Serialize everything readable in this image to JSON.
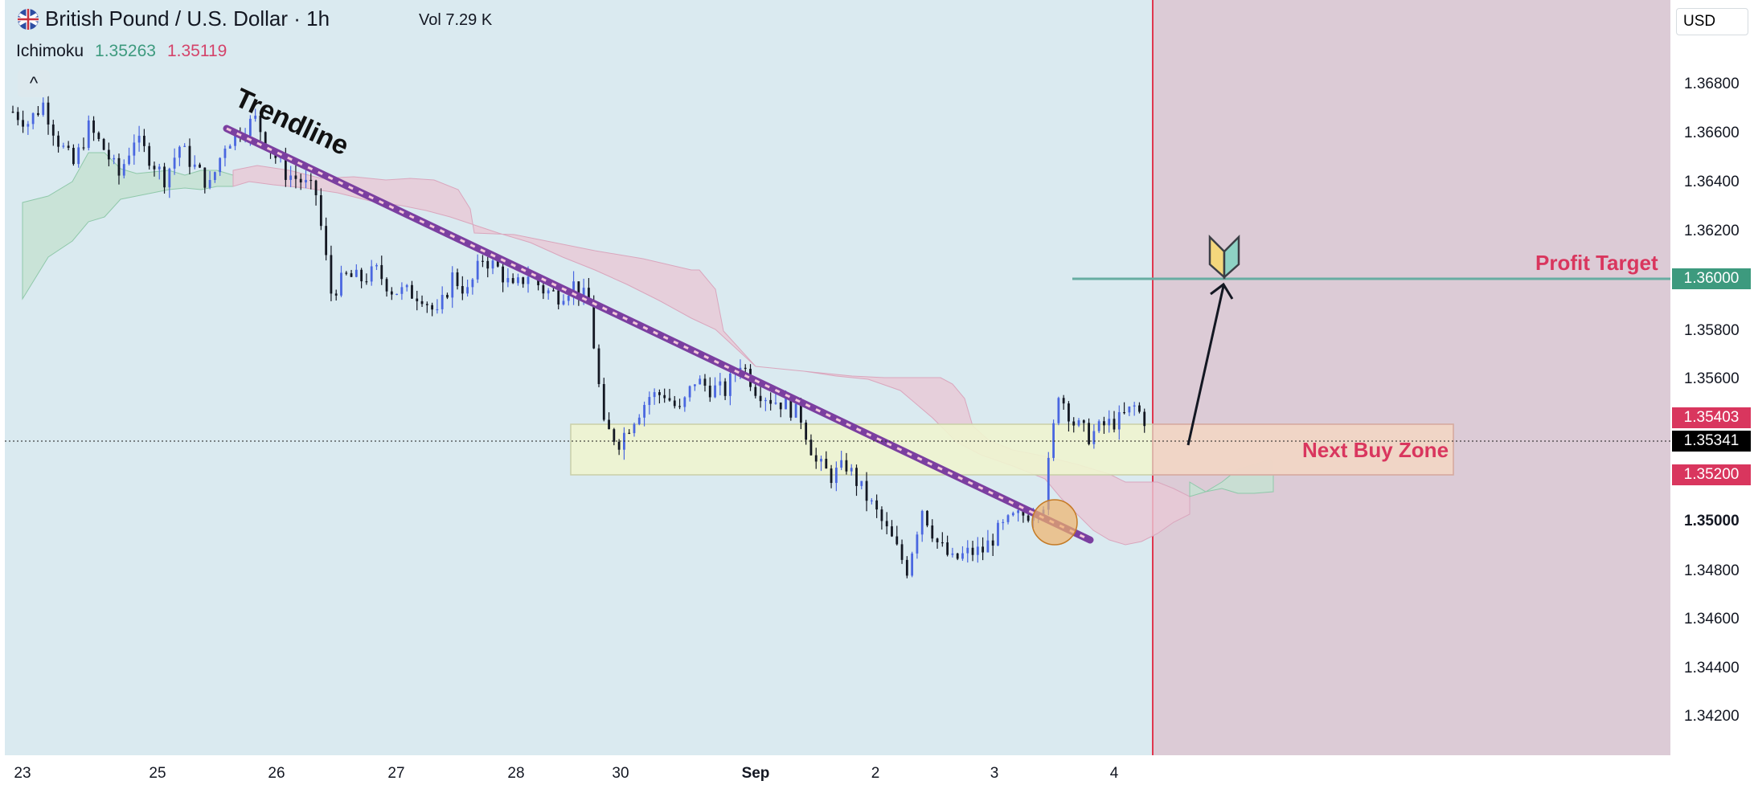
{
  "header": {
    "symbol_title": "British Pound / U.S. Dollar · 1h",
    "volume": "Vol 7.29 K",
    "indicator_name": "Ichimoku",
    "indicator_value_1": "1.35263",
    "indicator_value_2": "1.35119",
    "collapse_glyph": "^"
  },
  "price_scale": {
    "currency": "USD",
    "ticks": [
      "1.36800",
      "1.36600",
      "1.36400",
      "1.36200",
      "1.36000",
      "1.35800",
      "1.35600",
      "1.35400",
      "1.35200",
      "1.35000",
      "1.34800",
      "1.34600",
      "1.34400",
      "1.34200"
    ],
    "tags": {
      "profit_target": "1.36000",
      "zone_top": "1.35403",
      "current_price": "1.35341",
      "zone_bottom": "1.35200"
    }
  },
  "time_axis": [
    "23",
    "25",
    "26",
    "27",
    "28",
    "30",
    "Sep",
    "2",
    "3",
    "4"
  ],
  "annotations": {
    "trendline_label": "Trendline",
    "profit_target_label": "Profit Target",
    "buy_zone_label": "Next Buy Zone"
  },
  "colors": {
    "chart_bg": "#daeaf0",
    "bull_candle": "#4a67e0",
    "bear_candle": "#131722",
    "cloud_bear": "#e9c8d6",
    "cloud_bull": "#c6e2d2",
    "profit_line": "#67ada2",
    "buy_zone": "#eef4cf",
    "future_region": "#dccbd6",
    "accent_red": "#d9365e",
    "accent_green": "#3d9a7e"
  },
  "chart_data": {
    "type": "candlestick",
    "ylim": [
      1.341,
      1.3694
    ],
    "price_path": [
      1.3652,
      1.3648,
      1.3655,
      1.3641,
      1.3632,
      1.3646,
      1.3638,
      1.3628,
      1.3642,
      1.3635,
      1.3627,
      1.3639,
      1.3631,
      1.3624,
      1.364,
      1.3645,
      1.3649,
      1.3638,
      1.3629,
      1.3626,
      1.3621,
      1.3584,
      1.359,
      1.3589,
      1.3592,
      1.3585,
      1.3584,
      1.3583,
      1.3575,
      1.359,
      1.3584,
      1.3597,
      1.3593,
      1.3585,
      1.3591,
      1.3585,
      1.3583,
      1.3587,
      1.358,
      1.3533,
      1.3528,
      1.3537,
      1.3545,
      1.3546,
      1.3539,
      1.3551,
      1.3548,
      1.3547,
      1.3558,
      1.3548,
      1.3544,
      1.3542,
      1.3537,
      1.352,
      1.3515,
      1.3519,
      1.351,
      1.3501,
      1.3491,
      1.348,
      1.3503,
      1.349,
      1.3483,
      1.3486,
      1.3487,
      1.3494,
      1.3499,
      1.3501,
      1.3505,
      1.3547,
      1.3535,
      1.353,
      1.3534,
      1.3536,
      1.3541,
      1.3534
    ],
    "levels": {
      "profit_target": 1.36,
      "buy_zone_top": 1.35403,
      "buy_zone_bottom": 1.352,
      "current_price": 1.35341
    }
  }
}
